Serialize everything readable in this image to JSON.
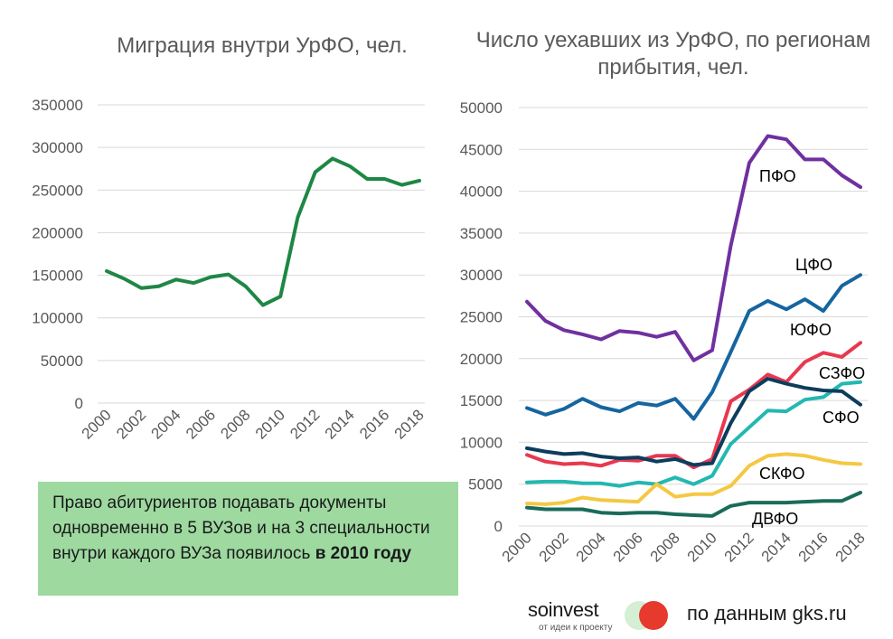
{
  "chart_data": [
    {
      "type": "line",
      "title": "Миграция внутри УрФО, чел.",
      "x": [
        2000,
        2001,
        2002,
        2003,
        2004,
        2005,
        2006,
        2007,
        2008,
        2009,
        2010,
        2011,
        2012,
        2013,
        2014,
        2015,
        2016,
        2017,
        2018
      ],
      "x_tick_labels": [
        "2000",
        "2002",
        "2004",
        "2006",
        "2008",
        "2010",
        "2012",
        "2014",
        "2016",
        "2018"
      ],
      "y_tick_labels": [
        "0",
        "50000",
        "100000",
        "150000",
        "200000",
        "250000",
        "300000",
        "350000"
      ],
      "ylim": [
        0,
        350000
      ],
      "grid": true,
      "series": [
        {
          "name": "Миграция внутри УрФО",
          "color": "#1e8744",
          "values": [
            155000,
            146000,
            135000,
            137000,
            145000,
            141000,
            148000,
            151000,
            137000,
            115000,
            125000,
            218000,
            271000,
            287000,
            278000,
            263000,
            263000,
            256000,
            261000
          ]
        }
      ]
    },
    {
      "type": "line",
      "title": "Число уехавших из УрФО, по регионам прибытия, чел.",
      "x": [
        2000,
        2001,
        2002,
        2003,
        2004,
        2005,
        2006,
        2007,
        2008,
        2009,
        2010,
        2011,
        2012,
        2013,
        2014,
        2015,
        2016,
        2017,
        2018
      ],
      "x_tick_labels": [
        "2000",
        "2002",
        "2004",
        "2006",
        "2008",
        "2010",
        "2012",
        "2014",
        "2016",
        "2018"
      ],
      "y_tick_labels": [
        "0",
        "5000",
        "10000",
        "15000",
        "20000",
        "25000",
        "30000",
        "35000",
        "40000",
        "45000",
        "50000"
      ],
      "ylim": [
        0,
        50000
      ],
      "grid": true,
      "series": [
        {
          "name": "ПФО",
          "color": "#7030a0",
          "values": [
            26800,
            24500,
            23400,
            22900,
            22300,
            23300,
            23100,
            22600,
            23200,
            19800,
            21000,
            33500,
            43400,
            46600,
            46200,
            43800,
            43800,
            41900,
            40500
          ]
        },
        {
          "name": "ЦФО",
          "color": "#1565a0",
          "values": [
            14100,
            13300,
            14000,
            15200,
            14200,
            13700,
            14700,
            14400,
            15200,
            12800,
            16000,
            20800,
            25700,
            26900,
            25900,
            27100,
            25700,
            28700,
            30000
          ]
        },
        {
          "name": "ЮФО",
          "color": "#e8384f",
          "values": [
            8500,
            7700,
            7400,
            7500,
            7200,
            7900,
            7800,
            8400,
            8400,
            7000,
            8000,
            14900,
            16300,
            18100,
            17200,
            19600,
            20700,
            20200,
            21900
          ]
        },
        {
          "name": "СЗФО",
          "color": "#23b8b0",
          "values": [
            5200,
            5300,
            5300,
            5100,
            5100,
            4800,
            5200,
            5000,
            5800,
            5000,
            6000,
            9800,
            11800,
            13800,
            13700,
            15100,
            15400,
            17000,
            17200
          ]
        },
        {
          "name": "СФО",
          "color": "#0d3d5c",
          "values": [
            9300,
            8900,
            8600,
            8700,
            8300,
            8100,
            8200,
            7700,
            8000,
            7300,
            7500,
            12300,
            16100,
            17600,
            17000,
            16500,
            16200,
            16100,
            14500
          ]
        },
        {
          "name": "СКФО",
          "color": "#f5c842",
          "values": [
            2700,
            2600,
            2800,
            3400,
            3100,
            3000,
            2900,
            5000,
            3500,
            3800,
            3800,
            4800,
            7200,
            8400,
            8600,
            8400,
            7900,
            7500,
            7400
          ]
        },
        {
          "name": "ДВФО",
          "color": "#1a6b5a",
          "values": [
            2200,
            2000,
            2000,
            2000,
            1600,
            1500,
            1600,
            1600,
            1400,
            1300,
            1200,
            2400,
            2800,
            2800,
            2800,
            2900,
            3000,
            3000,
            4000
          ]
        }
      ]
    }
  ],
  "note": {
    "text": "Право абитуриентов подавать документы одновременно в 5 ВУЗов и на 3 специальности внутри каждого ВУЗа появилось",
    "bold": "в 2010 году"
  },
  "logo": {
    "name": "soinvest",
    "tagline": "от идеи к проекту",
    "colors": [
      "#d4efd4",
      "#e63a2e"
    ]
  },
  "source": "по данным gks.ru"
}
